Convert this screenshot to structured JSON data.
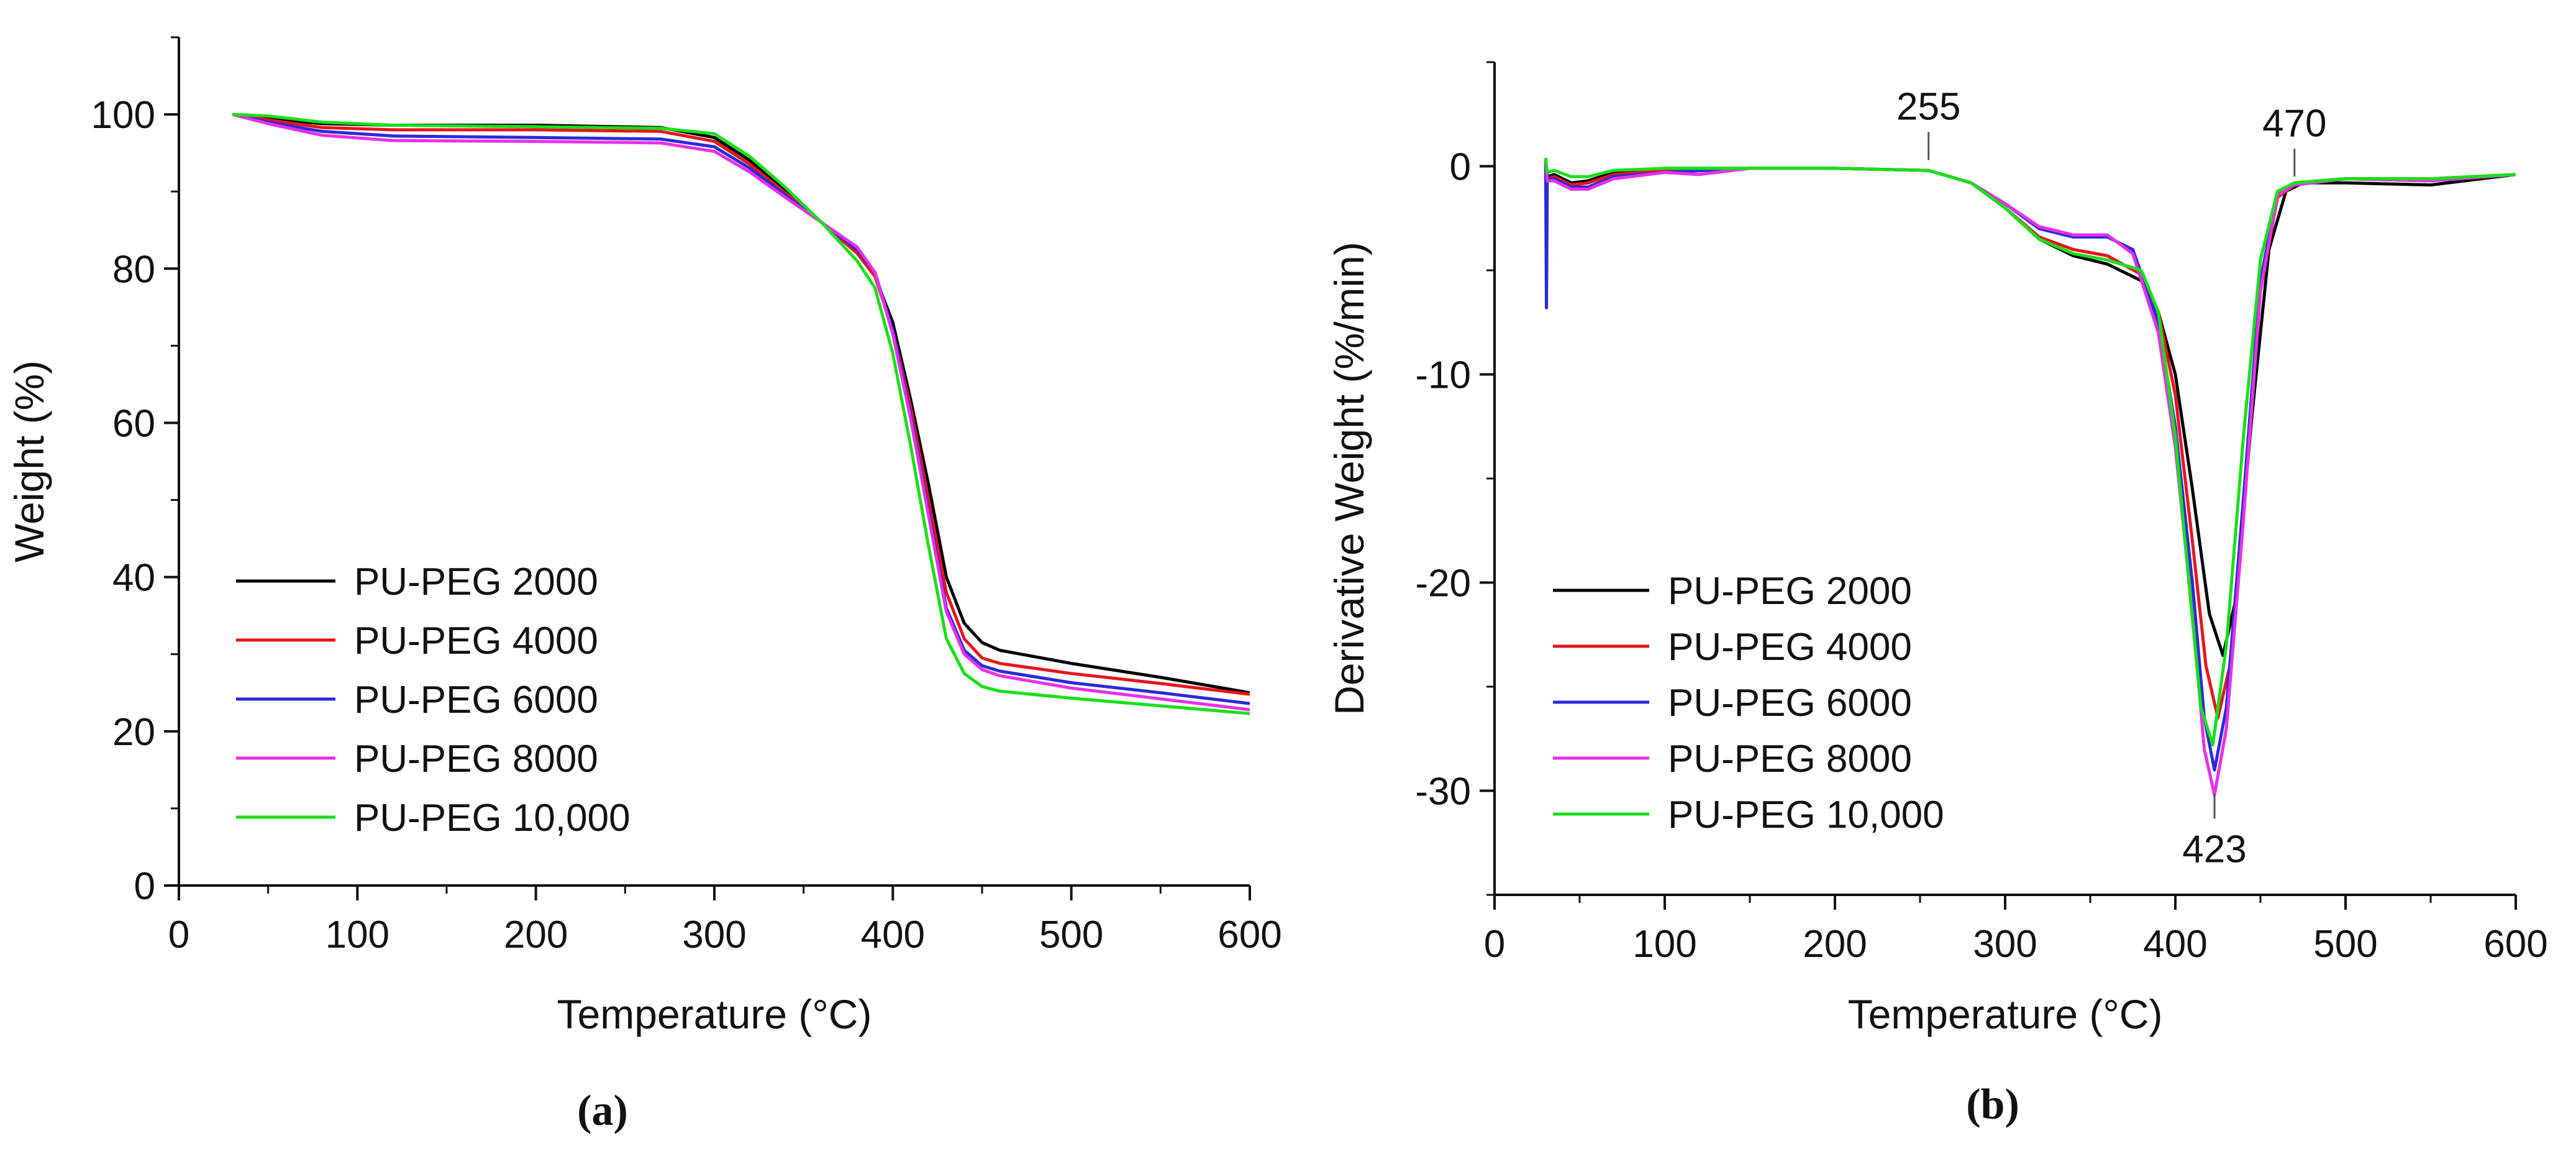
{
  "chart_data": [
    {
      "type": "line",
      "panel_label": "(a)",
      "xlabel": "Temperature (°C)",
      "ylabel": "Weight (%)",
      "xlim": [
        0,
        600
      ],
      "ylim": [
        0,
        110
      ],
      "x_ticks": [
        0,
        100,
        200,
        300,
        400,
        500,
        600
      ],
      "y_ticks": [
        0,
        20,
        40,
        60,
        80,
        100
      ],
      "legend_position": "bottom-left",
      "series": [
        {
          "name": "PU-PEG 2000",
          "color": "#000000",
          "x": [
            30,
            50,
            80,
            120,
            200,
            270,
            300,
            320,
            340,
            360,
            380,
            390,
            400,
            410,
            420,
            430,
            440,
            450,
            460,
            500,
            550,
            600
          ],
          "y": [
            100,
            99.5,
            98.8,
            98.6,
            98.6,
            98.3,
            97.0,
            94.0,
            90.0,
            86.0,
            82.0,
            79.0,
            73.0,
            63.0,
            52.0,
            40.0,
            34.0,
            31.5,
            30.5,
            28.8,
            27.0,
            25.0
          ]
        },
        {
          "name": "PU-PEG 4000",
          "color": "#e8141c",
          "x": [
            30,
            50,
            80,
            120,
            200,
            270,
            300,
            320,
            340,
            360,
            380,
            390,
            400,
            410,
            420,
            430,
            440,
            450,
            460,
            500,
            550,
            600
          ],
          "y": [
            100,
            99.3,
            98.3,
            98.0,
            98.0,
            97.8,
            96.5,
            93.5,
            89.8,
            86.0,
            82.0,
            79.0,
            72.0,
            62.0,
            50.0,
            38.0,
            32.0,
            29.5,
            28.8,
            27.5,
            26.2,
            24.8
          ]
        },
        {
          "name": "PU-PEG 6000",
          "color": "#2a2ad8",
          "x": [
            30,
            50,
            80,
            120,
            200,
            270,
            300,
            320,
            340,
            360,
            380,
            390,
            400,
            410,
            420,
            430,
            440,
            450,
            460,
            500,
            550,
            600
          ],
          "y": [
            100,
            99.0,
            97.8,
            97.2,
            97.0,
            96.8,
            95.8,
            93.0,
            89.5,
            86.0,
            82.5,
            79.5,
            72.0,
            61.0,
            48.5,
            36.0,
            30.5,
            28.5,
            27.8,
            26.3,
            25.0,
            23.6
          ]
        },
        {
          "name": "PU-PEG 8000",
          "color": "#e830e8",
          "x": [
            30,
            50,
            80,
            120,
            200,
            270,
            300,
            320,
            340,
            360,
            380,
            390,
            400,
            410,
            420,
            430,
            440,
            450,
            460,
            500,
            550,
            600
          ],
          "y": [
            100,
            98.8,
            97.3,
            96.6,
            96.5,
            96.3,
            95.2,
            92.5,
            89.2,
            86.0,
            82.8,
            79.5,
            71.5,
            60.5,
            48.0,
            35.5,
            30.0,
            28.0,
            27.2,
            25.6,
            24.2,
            22.8
          ]
        },
        {
          "name": "PU-PEG 10,000",
          "color": "#18e018",
          "x": [
            30,
            50,
            80,
            120,
            200,
            270,
            300,
            320,
            340,
            360,
            380,
            390,
            400,
            410,
            420,
            430,
            440,
            450,
            460,
            500,
            550,
            600
          ],
          "y": [
            100,
            99.8,
            99.0,
            98.6,
            98.4,
            98.2,
            97.5,
            94.5,
            90.5,
            86.0,
            81.0,
            77.5,
            69.0,
            57.0,
            44.0,
            32.0,
            27.5,
            25.8,
            25.2,
            24.3,
            23.3,
            22.3
          ]
        }
      ]
    },
    {
      "type": "line",
      "panel_label": "(b)",
      "xlabel": "Temperature (°C)",
      "ylabel": "Derivative Weight (%/min)",
      "xlim": [
        0,
        600
      ],
      "ylim": [
        -35,
        5
      ],
      "x_ticks": [
        0,
        100,
        200,
        300,
        400,
        500,
        600
      ],
      "y_ticks": [
        -30,
        -20,
        -10,
        0
      ],
      "legend_position": "bottom-left",
      "annotations": [
        {
          "text": "255",
          "x": 255,
          "y": 0
        },
        {
          "text": "470",
          "x": 470,
          "y": -0.8
        },
        {
          "text": "423",
          "x": 423,
          "y": -30
        }
      ],
      "series": [
        {
          "name": "PU-PEG 2000",
          "color": "#000000",
          "x": [
            30,
            31,
            35,
            45,
            55,
            70,
            100,
            150,
            200,
            255,
            280,
            300,
            320,
            340,
            360,
            380,
            390,
            400,
            410,
            420,
            428,
            435,
            445,
            455,
            465,
            475,
            500,
            550,
            600
          ],
          "y": [
            0.3,
            -0.5,
            -0.4,
            -0.8,
            -0.7,
            -0.3,
            -0.1,
            -0.1,
            -0.1,
            -0.2,
            -0.8,
            -2.0,
            -3.5,
            -4.3,
            -4.7,
            -5.5,
            -7.0,
            -10.0,
            -15.5,
            -21.5,
            -23.5,
            -21.0,
            -12.0,
            -4.0,
            -1.2,
            -0.8,
            -0.8,
            -0.9,
            -0.4
          ]
        },
        {
          "name": "PU-PEG 4000",
          "color": "#e8141c",
          "x": [
            30,
            31,
            35,
            45,
            55,
            70,
            100,
            150,
            200,
            255,
            280,
            300,
            320,
            340,
            360,
            380,
            390,
            400,
            410,
            418,
            425,
            432,
            440,
            450,
            460,
            470,
            500,
            550,
            600
          ],
          "y": [
            0.3,
            -0.6,
            -0.5,
            -0.9,
            -0.8,
            -0.4,
            -0.2,
            -0.1,
            -0.1,
            -0.2,
            -0.8,
            -2.0,
            -3.4,
            -4.0,
            -4.3,
            -5.2,
            -7.0,
            -11.0,
            -18.0,
            -24.0,
            -26.5,
            -24.0,
            -16.0,
            -6.0,
            -1.5,
            -0.9,
            -0.6,
            -0.6,
            -0.4
          ]
        },
        {
          "name": "PU-PEG 6000",
          "color": "#2a2ad8",
          "x": [
            30,
            30.5,
            31,
            35,
            45,
            55,
            70,
            100,
            150,
            200,
            255,
            280,
            300,
            320,
            340,
            360,
            375,
            390,
            400,
            410,
            417,
            423,
            430,
            440,
            450,
            460,
            470,
            500,
            550,
            600
          ],
          "y": [
            0.2,
            -6.8,
            -0.6,
            -0.6,
            -1.0,
            -1.0,
            -0.5,
            -0.3,
            -0.1,
            -0.1,
            -0.2,
            -0.8,
            -1.8,
            -3.0,
            -3.4,
            -3.4,
            -4.0,
            -7.5,
            -12.5,
            -20.0,
            -26.5,
            -29.0,
            -26.0,
            -16.0,
            -5.5,
            -1.3,
            -0.8,
            -0.6,
            -0.7,
            -0.4
          ]
        },
        {
          "name": "PU-PEG 8000",
          "color": "#e830e8",
          "x": [
            30,
            31,
            35,
            45,
            55,
            70,
            100,
            120,
            150,
            200,
            255,
            280,
            300,
            320,
            340,
            360,
            375,
            390,
            400,
            410,
            417,
            423,
            430,
            440,
            450,
            460,
            470,
            500,
            550,
            600
          ],
          "y": [
            0.3,
            -0.7,
            -0.7,
            -1.1,
            -1.1,
            -0.6,
            -0.3,
            -0.4,
            -0.1,
            -0.1,
            -0.2,
            -0.8,
            -1.8,
            -2.9,
            -3.3,
            -3.3,
            -4.2,
            -8.0,
            -13.5,
            -21.5,
            -28.0,
            -30.2,
            -27.0,
            -17.0,
            -6.0,
            -1.4,
            -0.9,
            -0.6,
            -0.7,
            -0.4
          ]
        },
        {
          "name": "PU-PEG 10,000",
          "color": "#18e018",
          "x": [
            30,
            31,
            35,
            45,
            55,
            70,
            100,
            150,
            200,
            255,
            280,
            300,
            320,
            340,
            360,
            380,
            390,
            400,
            408,
            415,
            422,
            430,
            440,
            450,
            460,
            470,
            500,
            550,
            600
          ],
          "y": [
            0.4,
            -0.3,
            -0.2,
            -0.5,
            -0.5,
            -0.2,
            -0.1,
            -0.1,
            -0.1,
            -0.2,
            -0.8,
            -2.0,
            -3.5,
            -4.2,
            -4.5,
            -5.0,
            -7.0,
            -13.0,
            -20.0,
            -26.0,
            -27.8,
            -23.0,
            -13.0,
            -4.5,
            -1.2,
            -0.8,
            -0.6,
            -0.6,
            -0.4
          ]
        }
      ]
    }
  ]
}
